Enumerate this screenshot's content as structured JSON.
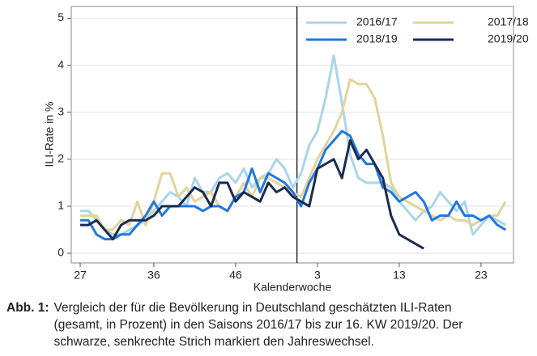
{
  "chart_data": {
    "type": "line",
    "xlabel": "Kalenderwoche",
    "ylabel": "ILI-Rate in %",
    "categories": [
      "27",
      null,
      null,
      null,
      null,
      null,
      null,
      null,
      null,
      "36",
      null,
      null,
      null,
      null,
      null,
      null,
      null,
      null,
      null,
      "46",
      null,
      null,
      null,
      null,
      null,
      null,
      null,
      null,
      null,
      "3",
      null,
      null,
      null,
      null,
      null,
      null,
      null,
      null,
      null,
      "13",
      null,
      null,
      null,
      null,
      null,
      null,
      null,
      null,
      null,
      "23",
      null,
      null,
      null
    ],
    "ylim": [
      0,
      5.25
    ],
    "yticks": [
      0,
      1,
      2,
      3,
      4,
      5
    ],
    "grid": true,
    "legend": "top-right",
    "series": [
      {
        "name": "2016/17",
        "color": "#a9d5ea",
        "values": [
          0.9,
          0.9,
          0.7,
          0.5,
          0.4,
          0.4,
          0.5,
          0.6,
          0.7,
          0.9,
          1.1,
          1.3,
          1.2,
          1.0,
          1.6,
          1.3,
          1.3,
          1.6,
          1.7,
          1.5,
          1.8,
          1.4,
          1.6,
          1.7,
          2.0,
          1.8,
          1.4,
          1.7,
          2.3,
          2.6,
          3.3,
          4.2,
          3.2,
          2.1,
          1.6,
          1.5,
          1.5,
          1.5,
          1.4,
          1.1,
          0.9,
          0.7,
          0.9,
          1.0,
          1.3,
          1.1,
          0.9,
          1.1,
          0.4,
          0.6,
          0.8,
          0.7,
          0.6
        ]
      },
      {
        "name": "2017/18",
        "color": "#e3d39c",
        "values": [
          0.8,
          0.8,
          0.8,
          0.5,
          0.5,
          0.7,
          0.6,
          1.1,
          0.6,
          1.1,
          1.7,
          1.7,
          1.2,
          1.4,
          1.1,
          1.2,
          1.3,
          1.0,
          0.9,
          1.2,
          1.5,
          1.2,
          1.6,
          1.6,
          1.5,
          1.4,
          1.3,
          1.2,
          1.6,
          2.0,
          2.3,
          2.6,
          3.0,
          3.7,
          3.6,
          3.6,
          3.3,
          2.5,
          1.5,
          1.2,
          1.1,
          1.0,
          0.9,
          0.8,
          0.7,
          0.8,
          0.7,
          0.7,
          0.6,
          0.7,
          0.8,
          0.8,
          1.1
        ]
      },
      {
        "name": "2018/19",
        "color": "#1f78e0",
        "values": [
          0.7,
          0.7,
          0.4,
          0.3,
          0.3,
          0.4,
          0.4,
          0.6,
          0.8,
          1.1,
          0.8,
          1.0,
          1.0,
          1.0,
          1.0,
          0.9,
          1.0,
          1.0,
          0.9,
          1.2,
          1.3,
          1.8,
          1.3,
          1.7,
          1.6,
          1.5,
          1.3,
          1.0,
          1.5,
          1.8,
          2.2,
          2.4,
          2.6,
          2.5,
          2.1,
          1.9,
          1.9,
          1.4,
          1.3,
          1.1,
          1.2,
          1.3,
          1.1,
          0.7,
          0.8,
          0.8,
          1.1,
          0.8,
          0.8,
          0.7,
          0.8,
          0.6,
          0.5
        ]
      },
      {
        "name": "2019/20",
        "color": "#1c2b52",
        "values": [
          0.6,
          0.6,
          0.7,
          0.5,
          0.3,
          0.6,
          0.7,
          0.7,
          0.7,
          0.8,
          1.0,
          1.0,
          1.0,
          1.2,
          1.4,
          1.3,
          1.0,
          1.5,
          1.5,
          1.1,
          1.3,
          1.2,
          1.1,
          1.5,
          1.3,
          1.4,
          1.2,
          1.1,
          1.0,
          1.8,
          1.9,
          2.0,
          1.6,
          2.4,
          2.0,
          2.2,
          1.9,
          1.6,
          0.8,
          0.4,
          0.3,
          0.2,
          0.1,
          null,
          null,
          null,
          null,
          null,
          null,
          null,
          null,
          null,
          null
        ]
      }
    ]
  },
  "caption": {
    "label": "Abb. 1:",
    "lines": [
      "Vergleich der für die Bevölkerung in Deutschland geschätzten ILI-Raten",
      "(gesamt, in Prozent) in den Saisons 2016/17 bis zur 16. KW 2019/20. Der",
      "schwarze, senkrechte Strich markiert den Jahreswechsel."
    ]
  }
}
